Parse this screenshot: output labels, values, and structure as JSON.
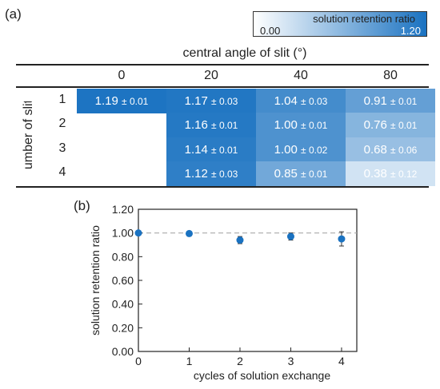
{
  "panel_a_label": "(a)",
  "panel_b_label": "(b)",
  "colorbar": {
    "title": "solution retention ratio",
    "min_label": "0.00",
    "max_label": "1.20",
    "min_value": 0.0,
    "max_value": 1.2,
    "color_low": "#ffffff",
    "color_high": "#1a72c1"
  },
  "chart_data": [
    {
      "type": "heatmap",
      "column_title": "central angle of slit (°)",
      "row_title": "number of slits",
      "columns": [
        "0",
        "20",
        "40",
        "80"
      ],
      "rows": [
        "1",
        "2",
        "3",
        "4"
      ],
      "cells": [
        [
          {
            "text": "1.19",
            "err": "± 0.01",
            "value": 1.19
          },
          {
            "text": "1.17",
            "err": "± 0.03",
            "value": 1.17
          },
          {
            "text": "1.04",
            "err": "± 0.03",
            "value": 1.04
          },
          {
            "text": "0.91",
            "err": "± 0.01",
            "value": 0.91
          }
        ],
        [
          null,
          {
            "text": "1.16",
            "err": "± 0.01",
            "value": 1.16
          },
          {
            "text": "1.00",
            "err": "± 0.01",
            "value": 1.0
          },
          {
            "text": "0.76",
            "err": "± 0.01",
            "value": 0.76
          }
        ],
        [
          null,
          {
            "text": "1.14",
            "err": "± 0.01",
            "value": 1.14
          },
          {
            "text": "1.00",
            "err": "± 0.02",
            "value": 1.0
          },
          {
            "text": "0.68",
            "err": "± 0.06",
            "value": 0.68
          }
        ],
        [
          null,
          {
            "text": "1.12",
            "err": "± 0.03",
            "value": 1.12
          },
          {
            "text": "0.85",
            "err": "± 0.01",
            "value": 0.85
          },
          {
            "text": "0.38",
            "err": "± 0.12",
            "value": 0.38
          }
        ]
      ]
    },
    {
      "type": "scatter",
      "xlabel": "cycles of solution exchange",
      "ylabel": "solution retention ratio",
      "x": [
        0,
        1,
        2,
        3,
        4
      ],
      "y": [
        1.0,
        0.995,
        0.94,
        0.97,
        0.95
      ],
      "yerr": [
        0.0,
        0.01,
        0.03,
        0.03,
        0.06
      ],
      "xlim": [
        0,
        4.3
      ],
      "ylim": [
        0.0,
        1.2
      ],
      "xticks": [
        "0",
        "1",
        "2",
        "3",
        "4"
      ],
      "yticks": [
        "0.00",
        "0.20",
        "0.40",
        "0.60",
        "0.80",
        "1.00",
        "1.20"
      ],
      "reference_line_y": 1.0,
      "marker_color": "#1a72c1"
    }
  ]
}
